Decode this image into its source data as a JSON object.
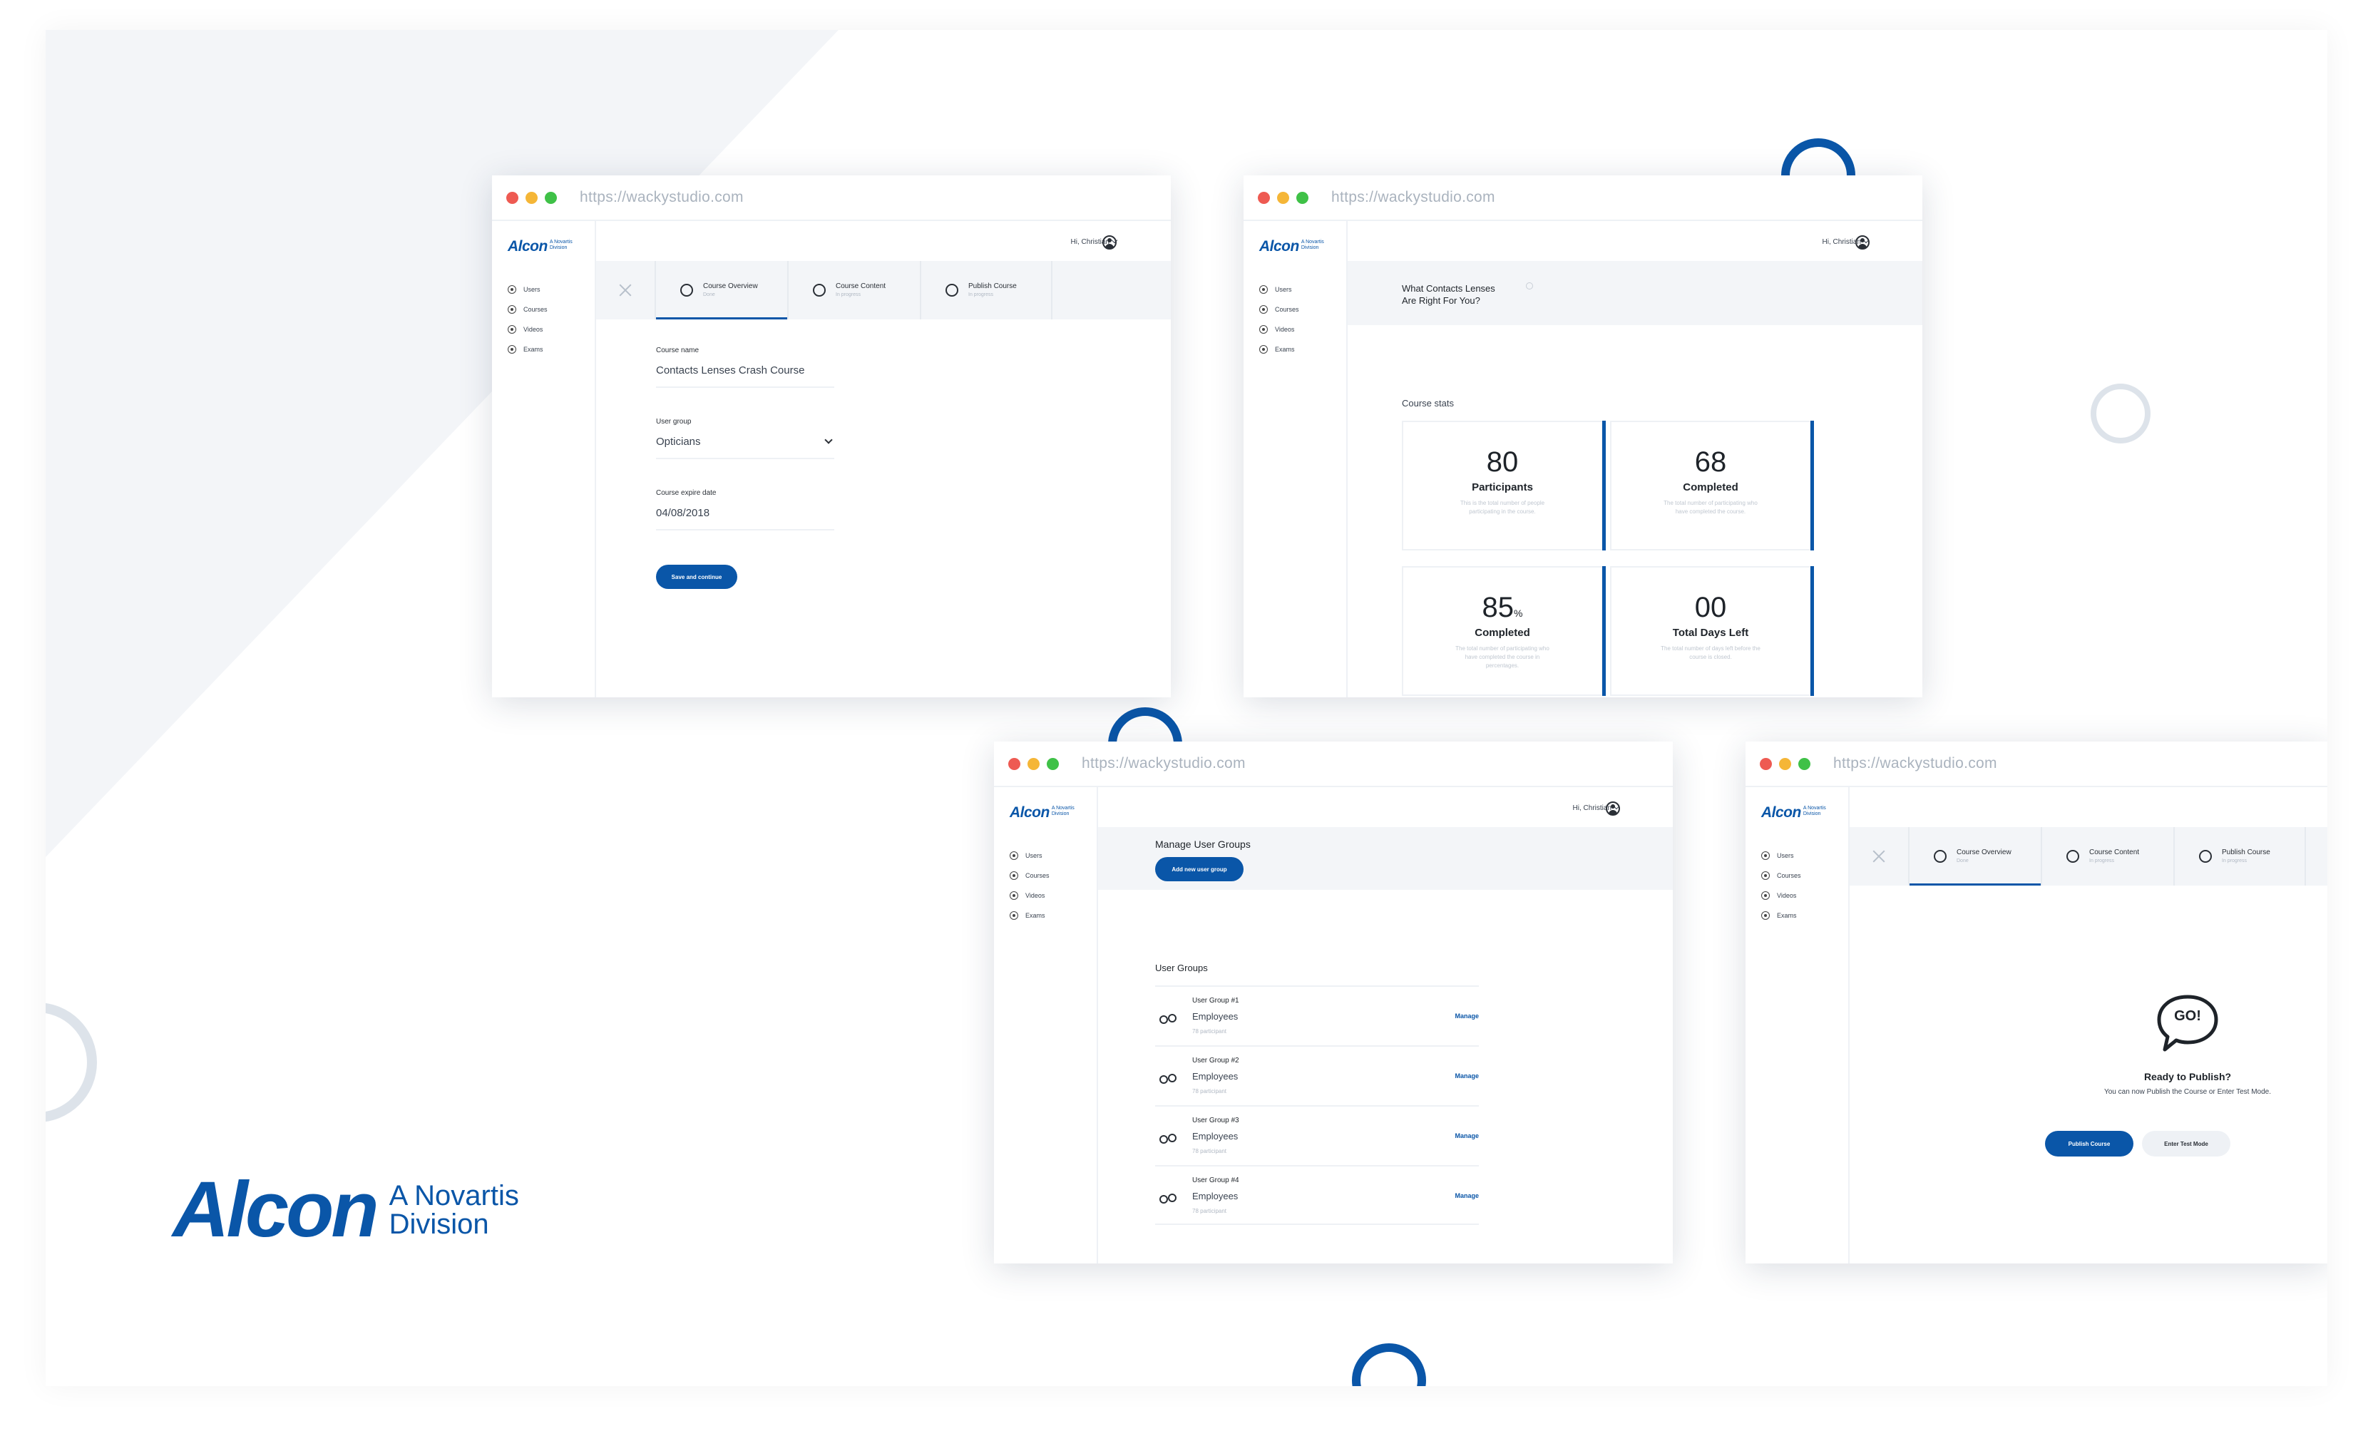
{
  "brand": {
    "name": "Alcon",
    "tagline_line1": "A Novartis",
    "tagline_line2": "Division",
    "color": "#0a56a8"
  },
  "browser": {
    "url": "https://wackystudio.com"
  },
  "app": {
    "logo_main": "Alcon",
    "logo_sub_line1": "A Novartis",
    "logo_sub_line2": "Division",
    "user_greeting": "Hi, Christian",
    "nav": [
      {
        "label": "Users",
        "icon": "user-icon"
      },
      {
        "label": "Courses",
        "icon": "courses-icon"
      },
      {
        "label": "Videos",
        "icon": "play-icon"
      },
      {
        "label": "Exams",
        "icon": "check-icon"
      }
    ]
  },
  "stepper": [
    {
      "title": "Course Overview",
      "status": "Done",
      "icon": "list-icon"
    },
    {
      "title": "Course Content",
      "status": "In progress",
      "icon": "play-icon"
    },
    {
      "title": "Publish Course",
      "status": "In progress",
      "icon": "publish-icon"
    }
  ],
  "course_form": {
    "name_label": "Course name",
    "name_value": "Contacts Lenses Crash Course",
    "group_label": "User group",
    "group_value": "Opticians",
    "expire_label": "Course expire date",
    "expire_value": "04/08/2018",
    "save_label": "Save and continue"
  },
  "stats_page": {
    "course_title_line1": "What Contacts Lenses",
    "course_title_line2": "Are Right For You?",
    "section_title": "Course stats",
    "stats": [
      {
        "value": "80",
        "unit": "",
        "label": "Participants",
        "desc": "This is the total number of people participating in the course."
      },
      {
        "value": "68",
        "unit": "",
        "label": "Completed",
        "desc": "The total number of participating who have completed the course."
      },
      {
        "value": "85",
        "unit": "%",
        "label": "Completed",
        "desc": "The total number of participating who have completed the course in percentages."
      },
      {
        "value": "00",
        "unit": "",
        "label": "Total Days Left",
        "desc": "The total number of days left before the course is closed."
      }
    ]
  },
  "groups_page": {
    "title": "Manage User Groups",
    "add_label": "Add new user group",
    "section_title": "User Groups",
    "groups": [
      {
        "name": "User Group #1",
        "type": "Employees",
        "meta": "78 participant",
        "action": "Manage"
      },
      {
        "name": "User Group #2",
        "type": "Employees",
        "meta": "78 participant",
        "action": "Manage"
      },
      {
        "name": "User Group #3",
        "type": "Employees",
        "meta": "78 participant",
        "action": "Manage"
      },
      {
        "name": "User Group #4",
        "type": "Employees",
        "meta": "78 participant",
        "action": "Manage"
      }
    ]
  },
  "publish_page": {
    "bubble_text": "GO!",
    "title": "Ready to Publish?",
    "subtitle": "You can now Publish the Course or Enter Test Mode.",
    "publish_label": "Publish Course",
    "test_label": "Enter Test Mode"
  }
}
